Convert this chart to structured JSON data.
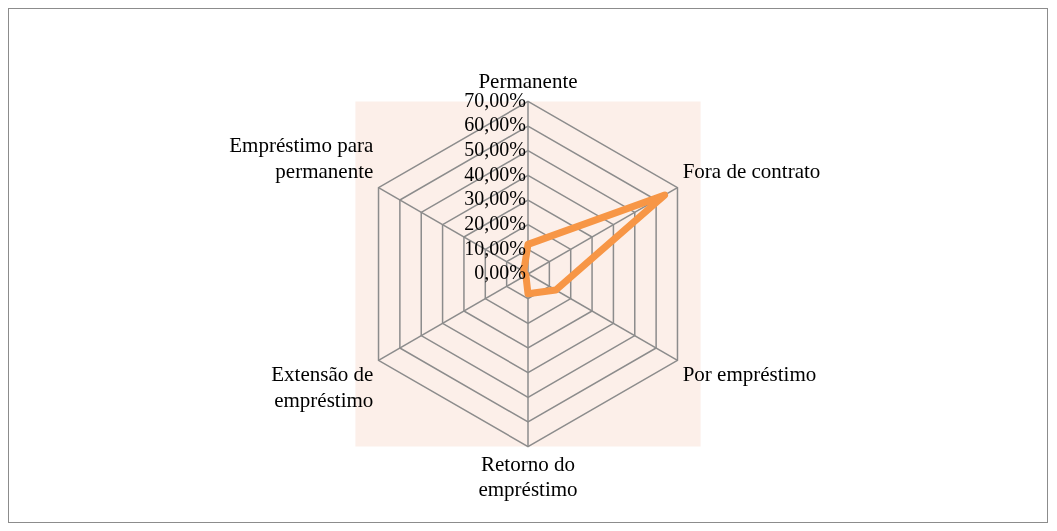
{
  "chart_data": {
    "type": "radar",
    "categories": [
      "Permanente",
      "Fora de contrato",
      "Por empréstimo",
      "Retorno do empréstimo",
      "Extensão de empréstimo",
      "Empréstimo para permanente"
    ],
    "series": [
      {
        "color": "#f79646",
        "values": [
          12,
          64,
          13,
          8,
          1,
          2
        ]
      }
    ],
    "ylim": [
      0,
      70
    ],
    "yticks": [
      {
        "value": 0,
        "label": "0,00%"
      },
      {
        "value": 10,
        "label": "10,00%"
      },
      {
        "value": 20,
        "label": "20,00%"
      },
      {
        "value": 30,
        "label": "30,00%"
      },
      {
        "value": 40,
        "label": "40,00%"
      },
      {
        "value": 50,
        "label": "50,00%"
      },
      {
        "value": 60,
        "label": "60,00%"
      },
      {
        "value": 70,
        "label": "70,00%"
      }
    ],
    "grid": true,
    "legend": false
  }
}
